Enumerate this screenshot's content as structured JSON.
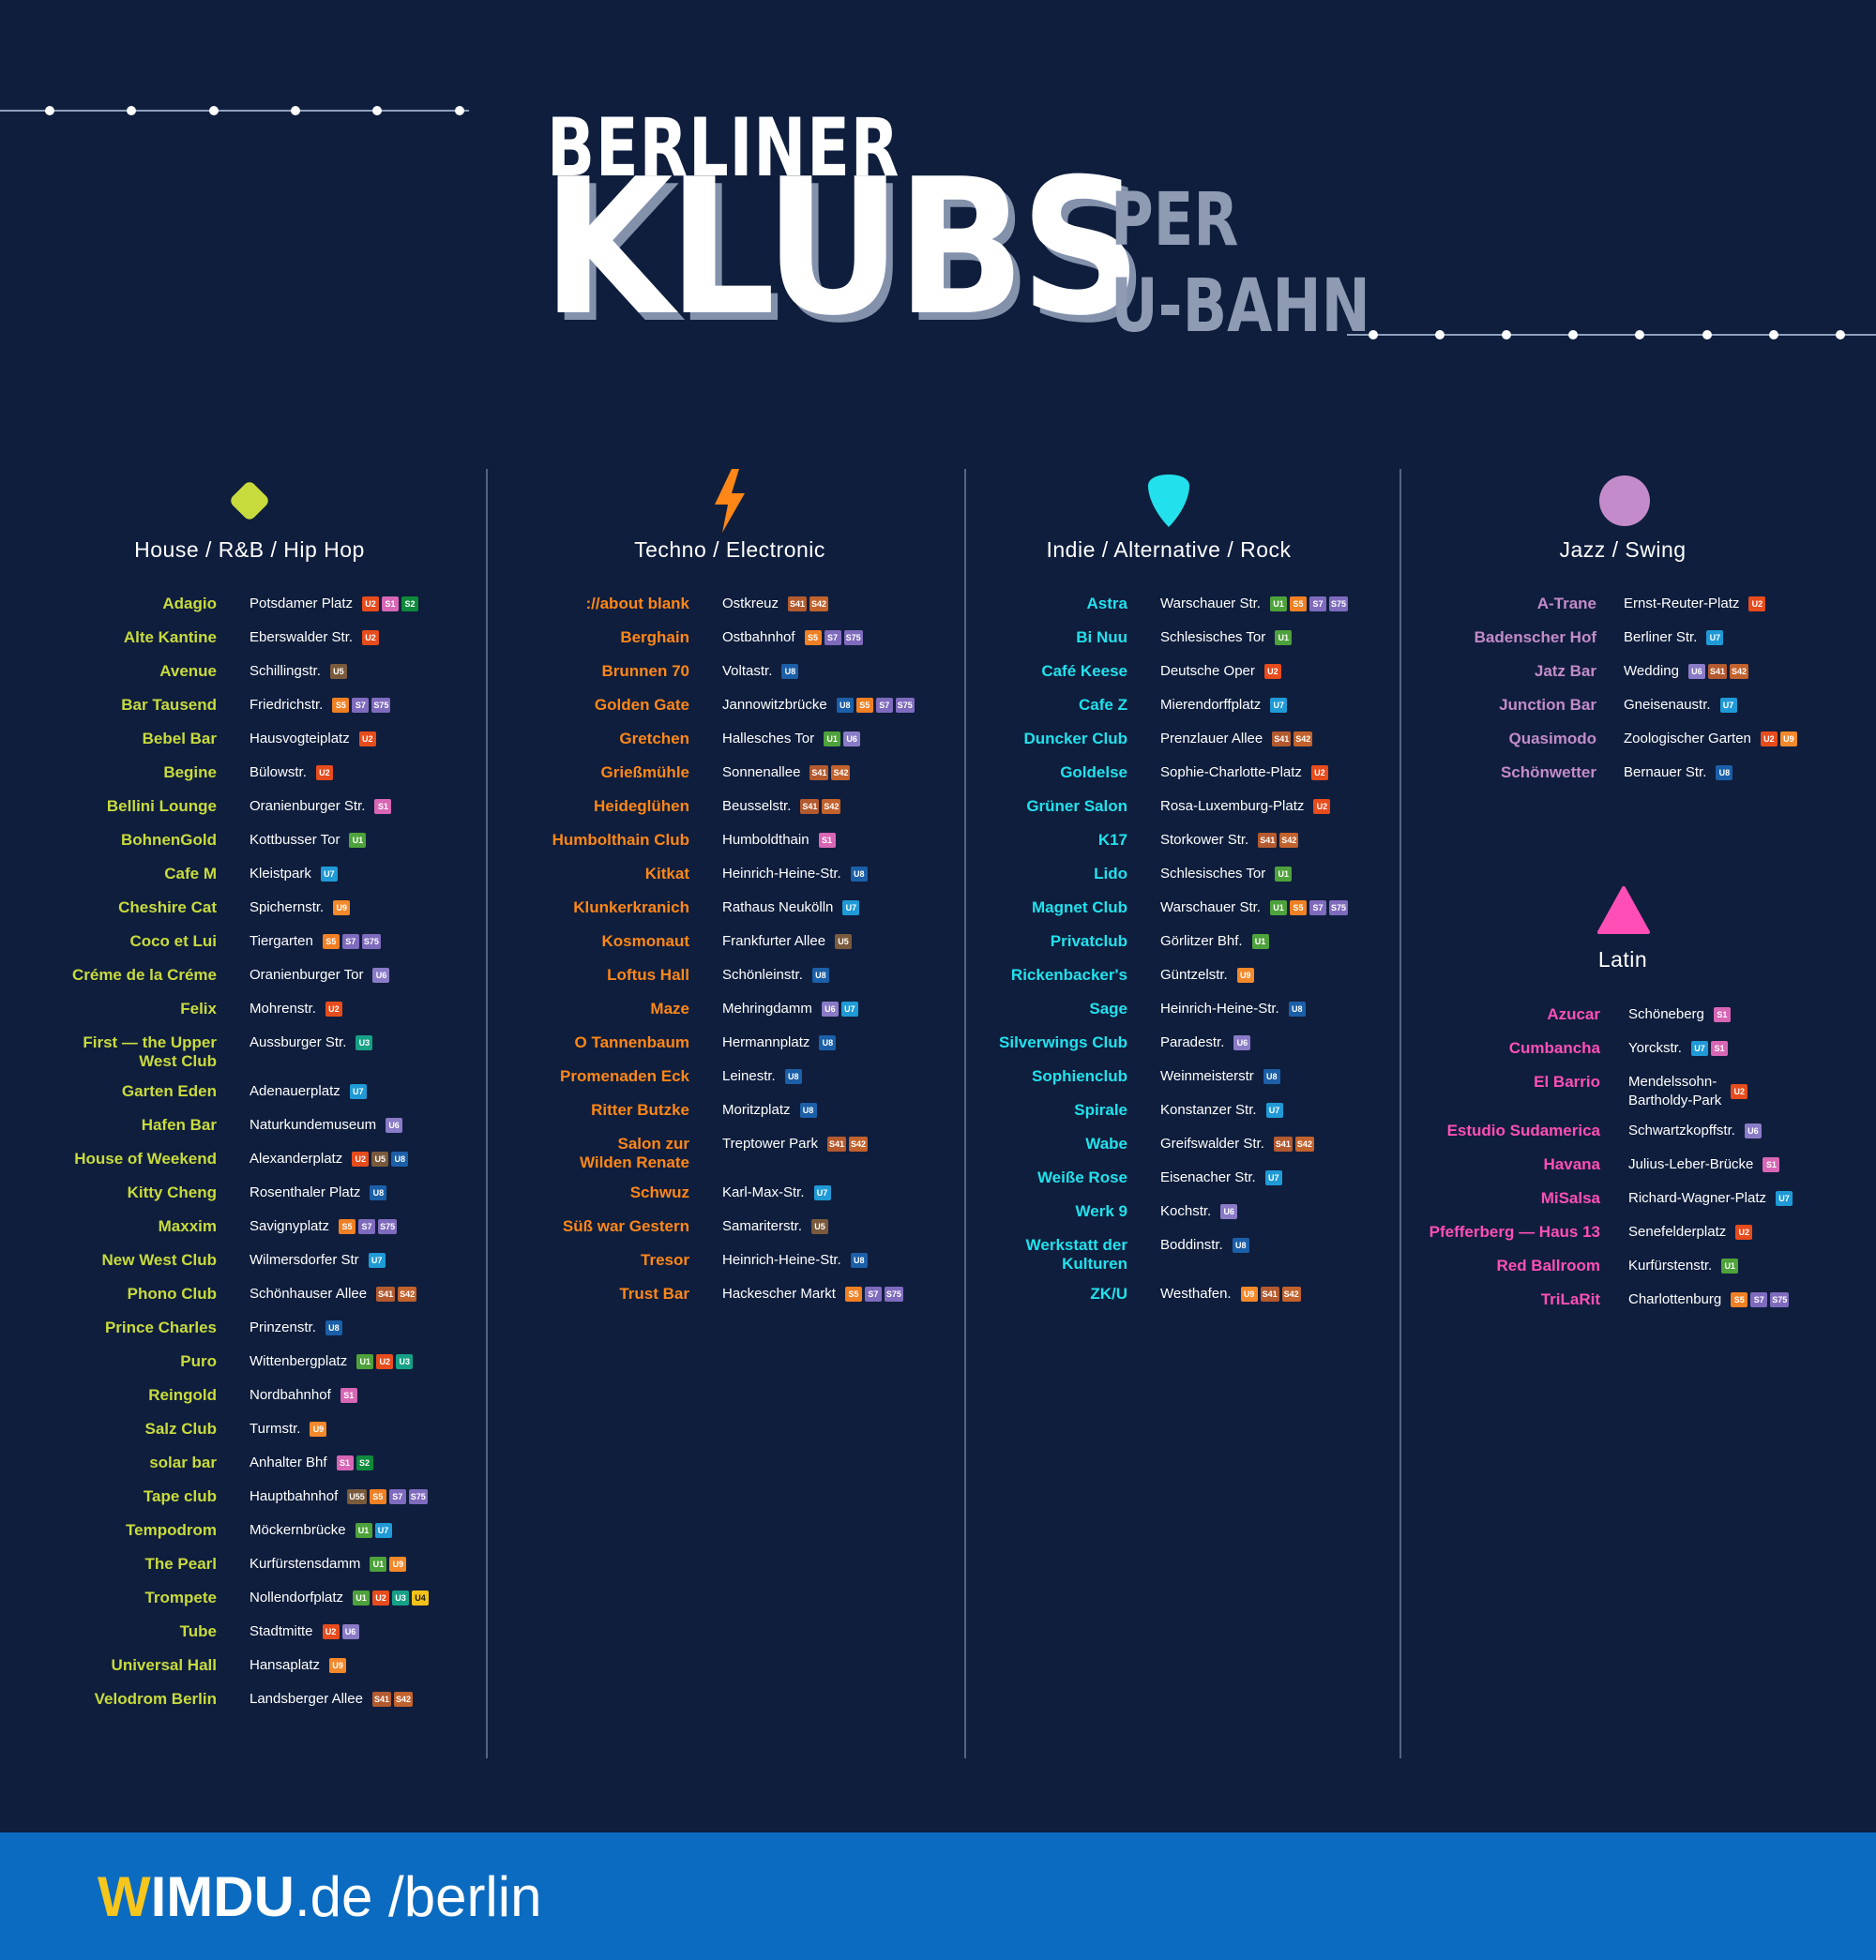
{
  "header": {
    "line1": "BERLINER",
    "line2": "KLUBS",
    "line3": "PER",
    "line4": "U-BAHN"
  },
  "colors": {
    "background": "#0f1e3d",
    "house": "#c8db3c",
    "techno": "#ff8717",
    "indie": "#22e1ec",
    "jazz": "#c38bc9",
    "latin": "#ff4fb6",
    "U1": "#4ea23b",
    "U2": "#e74c1c",
    "U3": "#16a085",
    "U4": "#f2c218",
    "U5": "#7a5a3c",
    "U6": "#8a7bc7",
    "U7": "#1f9ad6",
    "U8": "#1b5fa8",
    "U9": "#f3892a",
    "S1": "#d766b5",
    "S2": "#0f8a3c",
    "S5": "#f08024",
    "S7": "#7f6bbd",
    "S75": "#7f6bbd",
    "S41": "#b35a2f",
    "S42": "#c2622c",
    "U55": "#7a5a3c"
  },
  "sections": [
    {
      "name": "House / R&B / Hip Hop",
      "icon": "diamond-icon",
      "clubs": [
        {
          "club": "Adagio",
          "station": "Potsdamer Platz",
          "lines": [
            "U2",
            "S1",
            "S2"
          ]
        },
        {
          "club": "Alte Kantine",
          "station": "Eberswalder Str.",
          "lines": [
            "U2"
          ]
        },
        {
          "club": "Avenue",
          "station": "Schillingstr.",
          "lines": [
            "U5"
          ]
        },
        {
          "club": "Bar Tausend",
          "station": "Friedrichstr.",
          "lines": [
            "S5",
            "S7",
            "S75"
          ]
        },
        {
          "club": "Bebel Bar",
          "station": "Hausvogteiplatz",
          "lines": [
            "U2"
          ]
        },
        {
          "club": "Begine",
          "station": "Bülowstr.",
          "lines": [
            "U2"
          ]
        },
        {
          "club": "Bellini Lounge",
          "station": "Oranienburger Str.",
          "lines": [
            "S1"
          ]
        },
        {
          "club": "BohnenGold",
          "station": "Kottbusser Tor",
          "lines": [
            "U1"
          ]
        },
        {
          "club": "Cafe M",
          "station": "Kleistpark",
          "lines": [
            "U7"
          ]
        },
        {
          "club": "Cheshire Cat",
          "station": "Spichernstr.",
          "lines": [
            "U9"
          ]
        },
        {
          "club": "Coco et Lui",
          "station": "Tiergarten",
          "lines": [
            "S5",
            "S7",
            "S75"
          ]
        },
        {
          "club": "Créme de la Créme",
          "station": "Oranienburger Tor",
          "lines": [
            "U6"
          ]
        },
        {
          "club": "Felix",
          "station": "Mohrenstr.",
          "lines": [
            "U2"
          ]
        },
        {
          "club": "First — the Upper\nWest Club",
          "station": "Aussburger Str.",
          "lines": [
            "U3"
          ]
        },
        {
          "club": "Garten Eden",
          "station": "Adenauerplatz",
          "lines": [
            "U7"
          ]
        },
        {
          "club": "Hafen Bar",
          "station": "Naturkundemuseum",
          "lines": [
            "U6"
          ]
        },
        {
          "club": "House of Weekend",
          "station": "Alexanderplatz",
          "lines": [
            "U2",
            "U5",
            "U8"
          ]
        },
        {
          "club": "Kitty Cheng",
          "station": "Rosenthaler Platz",
          "lines": [
            "U8"
          ]
        },
        {
          "club": "Maxxim",
          "station": "Savignyplatz",
          "lines": [
            "S5",
            "S7",
            "S75"
          ]
        },
        {
          "club": "New West Club",
          "station": "Wilmersdorfer Str",
          "lines": [
            "U7"
          ]
        },
        {
          "club": "Phono Club",
          "station": "Schönhauser Allee",
          "lines": [
            "S41",
            "S42"
          ]
        },
        {
          "club": "Prince Charles",
          "station": "Prinzenstr.",
          "lines": [
            "U8"
          ]
        },
        {
          "club": "Puro",
          "station": "Wittenbergplatz",
          "lines": [
            "U1",
            "U2",
            "U3"
          ]
        },
        {
          "club": "Reingold",
          "station": "Nordbahnhof",
          "lines": [
            "S1"
          ]
        },
        {
          "club": "Salz Club",
          "station": "Turmstr.",
          "lines": [
            "U9"
          ]
        },
        {
          "club": "solar bar",
          "station": "Anhalter Bhf",
          "lines": [
            "S1",
            "S2"
          ]
        },
        {
          "club": "Tape club",
          "station": "Hauptbahnhof",
          "lines": [
            "U55",
            "S5",
            "S7",
            "S75"
          ]
        },
        {
          "club": "Tempodrom",
          "station": "Möckernbrücke",
          "lines": [
            "U1",
            "U7"
          ]
        },
        {
          "club": "The Pearl",
          "station": "Kurfürstensdamm",
          "lines": [
            "U1",
            "U9"
          ]
        },
        {
          "club": "Trompete",
          "station": "Nollendorfplatz",
          "lines": [
            "U1",
            "U2",
            "U3",
            "U4"
          ]
        },
        {
          "club": "Tube",
          "station": "Stadtmitte",
          "lines": [
            "U2",
            "U6"
          ]
        },
        {
          "club": "Universal Hall",
          "station": "Hansaplatz",
          "lines": [
            "U9"
          ]
        },
        {
          "club": "Velodrom Berlin",
          "station": "Landsberger Allee",
          "lines": [
            "S41",
            "S42"
          ]
        }
      ]
    },
    {
      "name": "Techno / Electronic",
      "icon": "lightning-icon",
      "clubs": [
        {
          "club": "://about blank",
          "station": "Ostkreuz",
          "lines": [
            "S41",
            "S42"
          ]
        },
        {
          "club": "Berghain",
          "station": "Ostbahnhof",
          "lines": [
            "S5",
            "S7",
            "S75"
          ]
        },
        {
          "club": "Brunnen 70",
          "station": "Voltastr.",
          "lines": [
            "U8"
          ]
        },
        {
          "club": "Golden Gate",
          "station": "Jannowitzbrücke",
          "lines": [
            "U8",
            "S5",
            "S7",
            "S75"
          ]
        },
        {
          "club": "Gretchen",
          "station": "Hallesches Tor",
          "lines": [
            "U1",
            "U6"
          ]
        },
        {
          "club": "Grießmühle",
          "station": "Sonnenallee",
          "lines": [
            "S41",
            "S42"
          ]
        },
        {
          "club": "Heideglühen",
          "station": "Beusselstr.",
          "lines": [
            "S41",
            "S42"
          ]
        },
        {
          "club": "Humbolthain Club",
          "station": "Humboldthain",
          "lines": [
            "S1"
          ]
        },
        {
          "club": "Kitkat",
          "station": "Heinrich-Heine-Str.",
          "lines": [
            "U8"
          ]
        },
        {
          "club": "Klunkerkranich",
          "station": "Rathaus Neukölln",
          "lines": [
            "U7"
          ]
        },
        {
          "club": "Kosmonaut",
          "station": "Frankfurter Allee",
          "lines": [
            "U5"
          ]
        },
        {
          "club": "Loftus Hall",
          "station": "Schönleinstr.",
          "lines": [
            "U8"
          ]
        },
        {
          "club": "Maze",
          "station": "Mehringdamm",
          "lines": [
            "U6",
            "U7"
          ]
        },
        {
          "club": "O Tannenbaum",
          "station": "Hermannplatz",
          "lines": [
            "U8"
          ]
        },
        {
          "club": "Promenaden Eck",
          "station": "Leinestr.",
          "lines": [
            "U8"
          ]
        },
        {
          "club": "Ritter Butzke",
          "station": "Moritzplatz",
          "lines": [
            "U8"
          ]
        },
        {
          "club": "Salon zur\nWilden Renate",
          "station": "Treptower Park",
          "lines": [
            "S41",
            "S42"
          ]
        },
        {
          "club": "Schwuz",
          "station": "Karl-Max-Str.",
          "lines": [
            "U7"
          ]
        },
        {
          "club": "Süß war Gestern",
          "station": "Samariterstr.",
          "lines": [
            "U5"
          ]
        },
        {
          "club": "Tresor",
          "station": "Heinrich-Heine-Str.",
          "lines": [
            "U8"
          ]
        },
        {
          "club": "Trust Bar",
          "station": "Hackescher Markt",
          "lines": [
            "S5",
            "S7",
            "S75"
          ]
        }
      ]
    },
    {
      "name": "Indie / Alternative / Rock",
      "icon": "guitar-pick-icon",
      "clubs": [
        {
          "club": "Astra",
          "station": "Warschauer Str.",
          "lines": [
            "U1",
            "S5",
            "S7",
            "S75"
          ]
        },
        {
          "club": "Bi Nuu",
          "station": "Schlesisches Tor",
          "lines": [
            "U1"
          ]
        },
        {
          "club": "Café Keese",
          "station": "Deutsche Oper",
          "lines": [
            "U2"
          ]
        },
        {
          "club": "Cafe Z",
          "station": "Mierendorffplatz",
          "lines": [
            "U7"
          ]
        },
        {
          "club": "Duncker Club",
          "station": "Prenzlauer Allee",
          "lines": [
            "S41",
            "S42"
          ]
        },
        {
          "club": "Goldelse",
          "station": "Sophie-Charlotte-Platz",
          "lines": [
            "U2"
          ]
        },
        {
          "club": "Grüner Salon",
          "station": "Rosa-Luxemburg-Platz",
          "lines": [
            "U2"
          ]
        },
        {
          "club": "K17",
          "station": "Storkower Str.",
          "lines": [
            "S41",
            "S42"
          ]
        },
        {
          "club": "Lido",
          "station": "Schlesisches Tor",
          "lines": [
            "U1"
          ]
        },
        {
          "club": "Magnet Club",
          "station": "Warschauer Str.",
          "lines": [
            "U1",
            "S5",
            "S7",
            "S75"
          ]
        },
        {
          "club": "Privatclub",
          "station": "Görlitzer Bhf.",
          "lines": [
            "U1"
          ]
        },
        {
          "club": "Rickenbacker's",
          "station": "Güntzelstr.",
          "lines": [
            "U9"
          ]
        },
        {
          "club": "Sage",
          "station": "Heinrich-Heine-Str.",
          "lines": [
            "U8"
          ]
        },
        {
          "club": "Silverwings Club",
          "station": "Paradestr.",
          "lines": [
            "U6"
          ]
        },
        {
          "club": "Sophienclub",
          "station": "Weinmeisterstr",
          "lines": [
            "U8"
          ]
        },
        {
          "club": "Spirale",
          "station": "Konstanzer Str.",
          "lines": [
            "U7"
          ]
        },
        {
          "club": "Wabe",
          "station": "Greifswalder Str.",
          "lines": [
            "S41",
            "S42"
          ]
        },
        {
          "club": "Weiße Rose",
          "station": "Eisenacher Str.",
          "lines": [
            "U7"
          ]
        },
        {
          "club": "Werk 9",
          "station": "Kochstr.",
          "lines": [
            "U6"
          ]
        },
        {
          "club": "Werkstatt der\nKulturen",
          "station": "Boddinstr.",
          "lines": [
            "U8"
          ]
        },
        {
          "club": "ZK/U",
          "station": "Westhafen.",
          "lines": [
            "U9",
            "S41",
            "S42"
          ]
        }
      ]
    },
    {
      "name": "Jazz / Swing",
      "icon": "circle-icon",
      "clubs": [
        {
          "club": "A-Trane",
          "station": "Ernst-Reuter-Platz",
          "lines": [
            "U2"
          ]
        },
        {
          "club": "Badenscher Hof",
          "station": "Berliner Str.",
          "lines": [
            "U7"
          ]
        },
        {
          "club": "Jatz Bar",
          "station": "Wedding",
          "lines": [
            "U6",
            "S41",
            "S42"
          ]
        },
        {
          "club": "Junction Bar",
          "station": "Gneisenaustr.",
          "lines": [
            "U7"
          ]
        },
        {
          "club": "Quasimodo",
          "station": "Zoologischer Garten",
          "lines": [
            "U2",
            "U9"
          ]
        },
        {
          "club": "Schönwetter",
          "station": "Bernauer Str.",
          "lines": [
            "U8"
          ]
        }
      ]
    },
    {
      "name": "Latin",
      "icon": "triangle-icon",
      "clubs": [
        {
          "club": "Azucar",
          "station": "Schöneberg",
          "lines": [
            "S1"
          ]
        },
        {
          "club": "Cumbancha",
          "station": "Yorckstr.",
          "lines": [
            "U7",
            "S1"
          ]
        },
        {
          "club": "El Barrio",
          "station": "Mendelssohn-\nBartholdy-Park",
          "lines": [
            "U2"
          ]
        },
        {
          "club": "Estudio Sudamerica",
          "station": "Schwartzkopffstr.",
          "lines": [
            "U6"
          ]
        },
        {
          "club": "Havana",
          "station": "Julius-Leber-Brücke",
          "lines": [
            "S1"
          ]
        },
        {
          "club": "MiSalsa",
          "station": "Richard-Wagner-Platz",
          "lines": [
            "U7"
          ]
        },
        {
          "club": "Pfefferberg — Haus 13",
          "station": "Senefelderplatz",
          "lines": [
            "U2"
          ]
        },
        {
          "club": "Red Ballroom",
          "station": "Kurfürstenstr.",
          "lines": [
            "U1"
          ]
        },
        {
          "club": "TriLaRit",
          "station": "Charlottenburg",
          "lines": [
            "S5",
            "S7",
            "S75"
          ]
        }
      ]
    }
  ],
  "footer": {
    "brand_w": "W",
    "brand_imdu": "IMDU",
    "brand_rest": ".de /berlin"
  }
}
